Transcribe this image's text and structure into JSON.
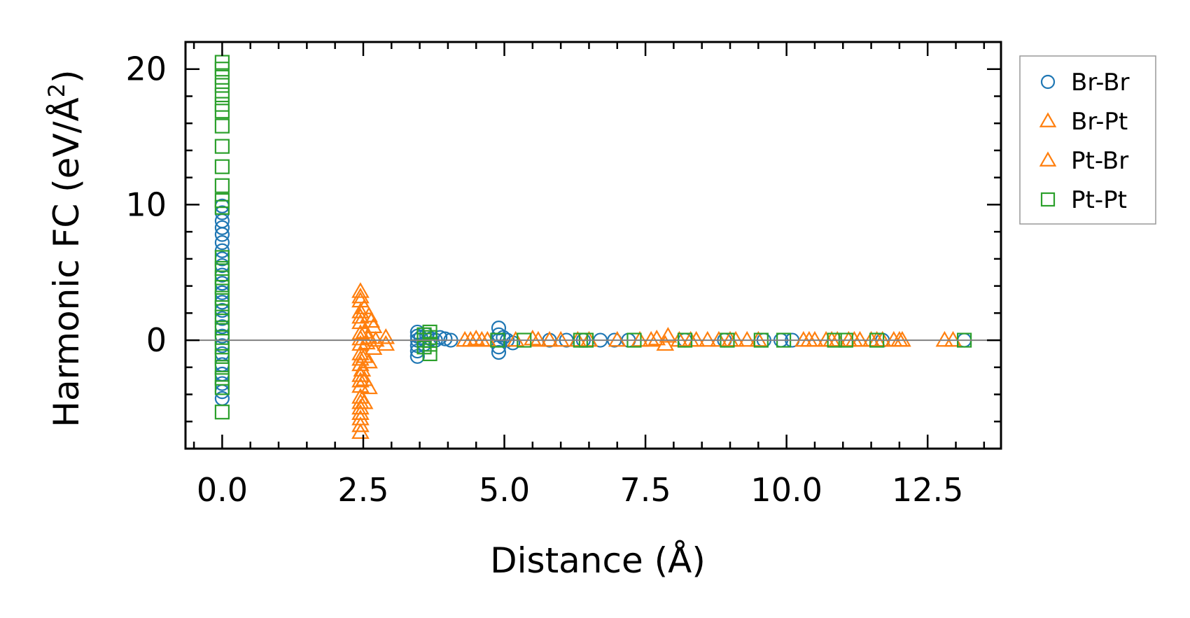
{
  "chart_data": {
    "type": "scatter",
    "xlabel": "Distance (Å)",
    "ylabel_main": "Harmonic FC (eV/Å",
    "ylabel_sup": "2",
    "ylabel_close": ")",
    "xlim": [
      -0.65,
      13.8
    ],
    "ylim": [
      -8.0,
      22.0
    ],
    "xticks": [
      0.0,
      2.5,
      5.0,
      7.5,
      10.0,
      12.5
    ],
    "xtick_labels": [
      "0.0",
      "2.5",
      "5.0",
      "7.5",
      "10.0",
      "12.5"
    ],
    "yticks": [
      0,
      10,
      20
    ],
    "ytick_labels": [
      "0",
      "10",
      "20"
    ],
    "zero_line": true,
    "grid": false,
    "legend_position": "outside-right",
    "series": [
      {
        "name": "Br-Br",
        "marker": "circle",
        "color": "#1f77b4",
        "points": [
          [
            0.0,
            -4.3
          ],
          [
            0.0,
            -3.8
          ],
          [
            0.0,
            -3.2
          ],
          [
            0.0,
            -2.5
          ],
          [
            0.0,
            -1.8
          ],
          [
            0.0,
            -1.0
          ],
          [
            0.0,
            -0.4
          ],
          [
            0.0,
            0.3
          ],
          [
            0.0,
            1.0
          ],
          [
            0.0,
            1.6
          ],
          [
            0.0,
            2.2
          ],
          [
            0.0,
            2.8
          ],
          [
            0.0,
            3.5
          ],
          [
            0.0,
            4.2
          ],
          [
            0.0,
            4.8
          ],
          [
            0.0,
            5.5
          ],
          [
            0.0,
            6.0
          ],
          [
            0.0,
            6.6
          ],
          [
            0.0,
            7.2
          ],
          [
            0.0,
            7.8
          ],
          [
            0.0,
            8.3
          ],
          [
            0.0,
            8.8
          ],
          [
            0.0,
            9.4
          ],
          [
            0.0,
            9.9
          ],
          [
            3.46,
            -1.2
          ],
          [
            3.46,
            -0.8
          ],
          [
            3.46,
            -0.4
          ],
          [
            3.46,
            0.0
          ],
          [
            3.46,
            0.3
          ],
          [
            3.46,
            0.6
          ],
          [
            3.52,
            0.2
          ],
          [
            3.58,
            -0.3
          ],
          [
            3.62,
            0.4
          ],
          [
            3.7,
            0.1
          ],
          [
            3.78,
            0.0
          ],
          [
            3.86,
            0.2
          ],
          [
            3.95,
            0.1
          ],
          [
            4.05,
            0.0
          ],
          [
            4.9,
            -0.9
          ],
          [
            4.9,
            -0.5
          ],
          [
            4.9,
            0.0
          ],
          [
            4.9,
            0.4
          ],
          [
            4.9,
            0.9
          ],
          [
            4.98,
            0.2
          ],
          [
            5.05,
            0.0
          ],
          [
            5.15,
            -0.2
          ],
          [
            5.8,
            0.0
          ],
          [
            6.1,
            0.0
          ],
          [
            6.4,
            0.0
          ],
          [
            6.7,
            0.0
          ],
          [
            6.95,
            0.0
          ],
          [
            7.2,
            0.0
          ],
          [
            8.2,
            0.0
          ],
          [
            8.9,
            0.0
          ],
          [
            9.6,
            0.0
          ],
          [
            9.9,
            0.0
          ],
          [
            10.1,
            0.0
          ],
          [
            11.7,
            0.0
          ],
          [
            13.15,
            0.0
          ]
        ]
      },
      {
        "name": "Br-Pt",
        "marker": "triangle",
        "color": "#ff7f0e",
        "points": [
          [
            2.45,
            -6.8
          ],
          [
            2.45,
            -5.8
          ],
          [
            2.45,
            -5.0
          ],
          [
            2.45,
            -4.2
          ],
          [
            2.45,
            -3.4
          ],
          [
            2.45,
            -2.6
          ],
          [
            2.45,
            -1.8
          ],
          [
            2.45,
            -1.0
          ],
          [
            2.45,
            -0.3
          ],
          [
            2.45,
            0.5
          ],
          [
            2.45,
            1.3
          ],
          [
            2.45,
            2.1
          ],
          [
            2.45,
            2.9
          ],
          [
            2.45,
            3.6
          ],
          [
            2.52,
            -4.6
          ],
          [
            2.52,
            -2.9
          ],
          [
            2.52,
            -1.2
          ],
          [
            2.52,
            0.6
          ],
          [
            2.52,
            2.4
          ],
          [
            2.6,
            -3.5
          ],
          [
            2.6,
            -1.6
          ],
          [
            2.6,
            0.2
          ],
          [
            2.6,
            1.8
          ],
          [
            2.68,
            -0.6
          ],
          [
            2.68,
            1.0
          ],
          [
            2.9,
            -0.3
          ],
          [
            2.9,
            0.2
          ],
          [
            4.3,
            0.0
          ],
          [
            4.5,
            0.1
          ],
          [
            4.7,
            0.0
          ],
          [
            5.2,
            0.0
          ],
          [
            5.5,
            0.1
          ],
          [
            5.8,
            0.0
          ],
          [
            6.0,
            0.0
          ],
          [
            6.3,
            0.0
          ],
          [
            7.0,
            0.0
          ],
          [
            7.4,
            0.0
          ],
          [
            7.7,
            0.1
          ],
          [
            7.85,
            -0.3
          ],
          [
            7.9,
            0.3
          ],
          [
            8.1,
            0.0
          ],
          [
            8.4,
            0.0
          ],
          [
            8.6,
            0.0
          ],
          [
            8.8,
            0.0
          ],
          [
            9.0,
            0.0
          ],
          [
            9.3,
            0.0
          ],
          [
            9.5,
            0.0
          ],
          [
            10.3,
            0.0
          ],
          [
            10.5,
            0.0
          ],
          [
            10.7,
            0.0
          ],
          [
            10.9,
            0.0
          ],
          [
            11.1,
            0.0
          ],
          [
            11.3,
            0.0
          ],
          [
            11.5,
            0.0
          ],
          [
            11.7,
            0.0
          ],
          [
            11.9,
            0.0
          ],
          [
            12.05,
            0.0
          ],
          [
            12.8,
            0.0
          ],
          [
            12.95,
            0.0
          ]
        ]
      },
      {
        "name": "Pt-Br",
        "marker": "triangle",
        "color": "#ff7f0e",
        "points": [
          [
            2.45,
            -6.3
          ],
          [
            2.45,
            -5.4
          ],
          [
            2.45,
            -4.6
          ],
          [
            2.45,
            -3.0
          ],
          [
            2.45,
            -1.4
          ],
          [
            2.45,
            0.1
          ],
          [
            2.45,
            1.7
          ],
          [
            2.45,
            3.2
          ],
          [
            2.48,
            -2.2
          ],
          [
            2.56,
            -0.2
          ],
          [
            2.64,
            1.4
          ],
          [
            2.72,
            0.0
          ],
          [
            4.4,
            0.0
          ],
          [
            4.6,
            0.0
          ],
          [
            5.6,
            0.0
          ],
          [
            6.5,
            0.0
          ],
          [
            7.6,
            0.0
          ],
          [
            8.3,
            0.0
          ],
          [
            9.1,
            0.0
          ],
          [
            10.4,
            0.0
          ],
          [
            10.8,
            0.0
          ],
          [
            11.2,
            0.0
          ],
          [
            11.6,
            0.0
          ],
          [
            12.0,
            0.0
          ]
        ]
      },
      {
        "name": "Pt-Pt",
        "marker": "square",
        "color": "#2ca02c",
        "points": [
          [
            0.0,
            -5.3
          ],
          [
            0.0,
            -3.5
          ],
          [
            0.0,
            -2.8
          ],
          [
            0.0,
            -2.0
          ],
          [
            0.0,
            -1.2
          ],
          [
            0.0,
            -0.5
          ],
          [
            0.0,
            0.2
          ],
          [
            0.0,
            0.9
          ],
          [
            0.0,
            1.7
          ],
          [
            0.0,
            2.4
          ],
          [
            0.0,
            3.1
          ],
          [
            0.0,
            3.9
          ],
          [
            0.0,
            4.6
          ],
          [
            0.0,
            5.3
          ],
          [
            0.0,
            6.1
          ],
          [
            0.0,
            9.8
          ],
          [
            0.0,
            10.3
          ],
          [
            0.0,
            11.4
          ],
          [
            0.0,
            12.8
          ],
          [
            0.0,
            14.3
          ],
          [
            0.0,
            15.8
          ],
          [
            0.0,
            16.9
          ],
          [
            0.0,
            17.4
          ],
          [
            0.0,
            18.1
          ],
          [
            0.0,
            18.8
          ],
          [
            0.0,
            19.4
          ],
          [
            0.0,
            20.0
          ],
          [
            0.0,
            20.5
          ],
          [
            3.58,
            -0.5
          ],
          [
            3.58,
            0.0
          ],
          [
            3.58,
            0.4
          ],
          [
            3.68,
            -1.0
          ],
          [
            3.68,
            -0.3
          ],
          [
            3.68,
            0.2
          ],
          [
            3.68,
            0.6
          ],
          [
            4.88,
            0.0
          ],
          [
            5.35,
            0.0
          ],
          [
            6.35,
            0.0
          ],
          [
            6.45,
            0.0
          ],
          [
            7.3,
            0.0
          ],
          [
            8.2,
            0.0
          ],
          [
            8.95,
            0.0
          ],
          [
            9.55,
            0.0
          ],
          [
            9.95,
            0.0
          ],
          [
            10.85,
            0.0
          ],
          [
            11.05,
            0.0
          ],
          [
            11.6,
            0.0
          ],
          [
            13.15,
            0.0
          ]
        ]
      }
    ]
  }
}
